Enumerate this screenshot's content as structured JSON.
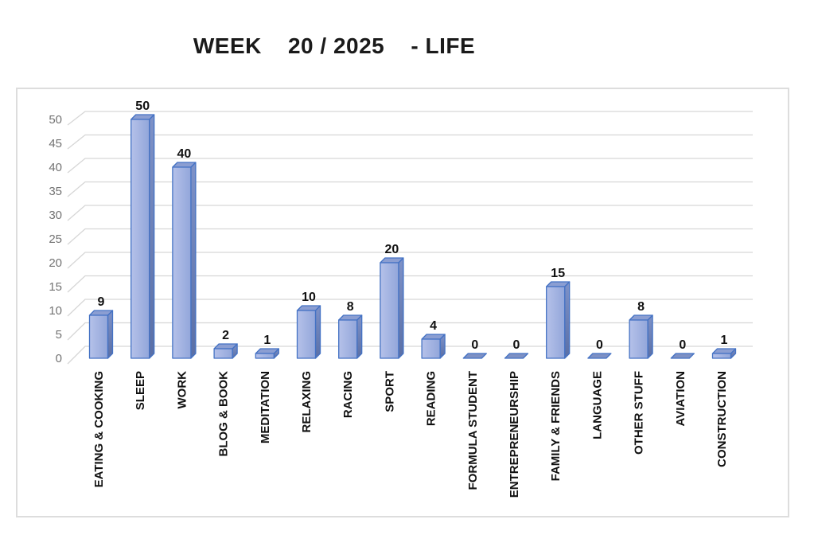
{
  "title": "WEEK    20 / 2025    - LIFE",
  "colors": {
    "bar_front_light": "#b5c1e9",
    "bar_front_dark": "#92a6da",
    "bar_top": "#8b9ed2",
    "bar_side_light": "#7e92c8",
    "bar_side_dark": "#5a6fa6",
    "bar_zero_fill": "#7d90c4",
    "bar_border": "#4472c4",
    "gridline": "#d6d6d6",
    "axis_text": "#737373",
    "label_text": "#111111",
    "chart_border": "#dddddd",
    "background": "#ffffff"
  },
  "chart_data": {
    "type": "bar",
    "style": "3d-column",
    "title": "WEEK    20 / 2025    - LIFE",
    "categories": [
      "EATING & COOKING",
      "SLEEP",
      "WORK",
      "BLOG & BOOK",
      "MEDITATION",
      "RELAXING",
      "RACING",
      "SPORT",
      "READING",
      "FORMULA STUDENT",
      "ENTREPRENEURSHIP",
      "FAMILY & FRIENDS",
      "LANGUAGE",
      "OTHER STUFF",
      "AVIATION",
      "CONSTRUCTION"
    ],
    "values": [
      9,
      50,
      40,
      2,
      1,
      10,
      8,
      20,
      4,
      0,
      0,
      15,
      0,
      8,
      0,
      1
    ],
    "data_labels_visible": true,
    "xlabel": "",
    "ylabel": "",
    "ylim": [
      0,
      50
    ],
    "ytick_step": 5,
    "yticks": [
      0,
      5,
      10,
      15,
      20,
      25,
      30,
      35,
      40,
      45,
      50
    ],
    "grid": true,
    "legend": false
  }
}
